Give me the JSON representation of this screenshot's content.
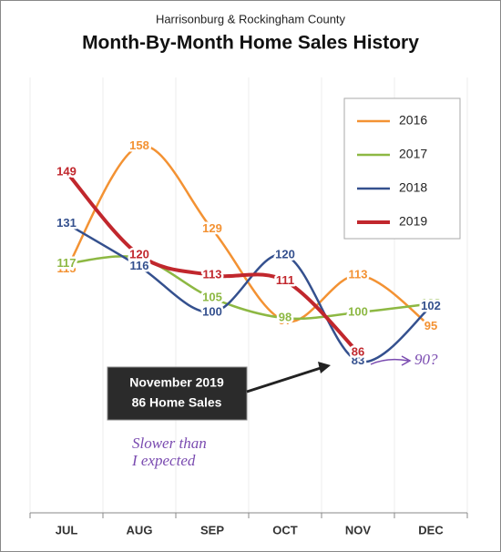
{
  "chart_data": {
    "type": "line",
    "subtitle": "Harrisonburg & Rockingham County",
    "title": "Month-By-Month Home Sales History",
    "categories": [
      "JUL",
      "AUG",
      "SEP",
      "OCT",
      "NOV",
      "DEC"
    ],
    "series": [
      {
        "name": "2016",
        "color": "#f39233",
        "values": [
          115,
          158,
          129,
          97,
          113,
          95
        ]
      },
      {
        "name": "2017",
        "color": "#8db843",
        "values": [
          117,
          119,
          105,
          98,
          100,
          103
        ]
      },
      {
        "name": "2018",
        "color": "#34508e",
        "values": [
          131,
          116,
          100,
          120,
          83,
          102
        ]
      },
      {
        "name": "2019",
        "color": "#c1272d",
        "values": [
          149,
          120,
          113,
          111,
          86,
          null
        ]
      }
    ],
    "ylim": [
      30,
      190
    ],
    "legend": "top-right",
    "annotations": [
      "November 2019",
      "86 Home Sales",
      "Slower than",
      "I expected",
      "90?"
    ]
  }
}
